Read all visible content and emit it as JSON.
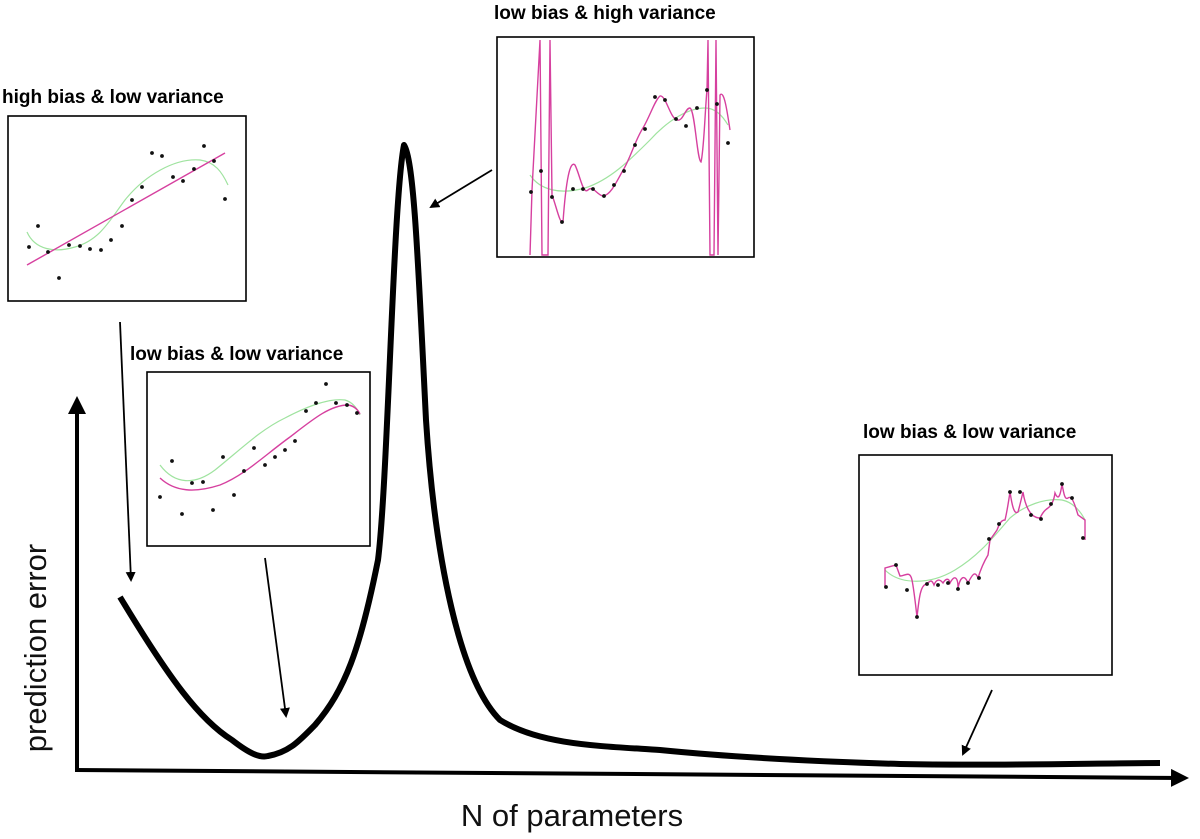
{
  "axes": {
    "x_label": "N of parameters",
    "y_label": "prediction error"
  },
  "panels": {
    "hb_lv": {
      "title": "high bias & low variance"
    },
    "lb_lv_1": {
      "title": "low bias & low variance"
    },
    "lb_hv": {
      "title": "low bias & high variance"
    },
    "lb_lv_2": {
      "title": "low bias & low variance"
    }
  },
  "colors": {
    "main_curve": "#000000",
    "true_function": "#9fe39f",
    "model_fit": "#d6409f",
    "data_points": "#111111"
  }
}
